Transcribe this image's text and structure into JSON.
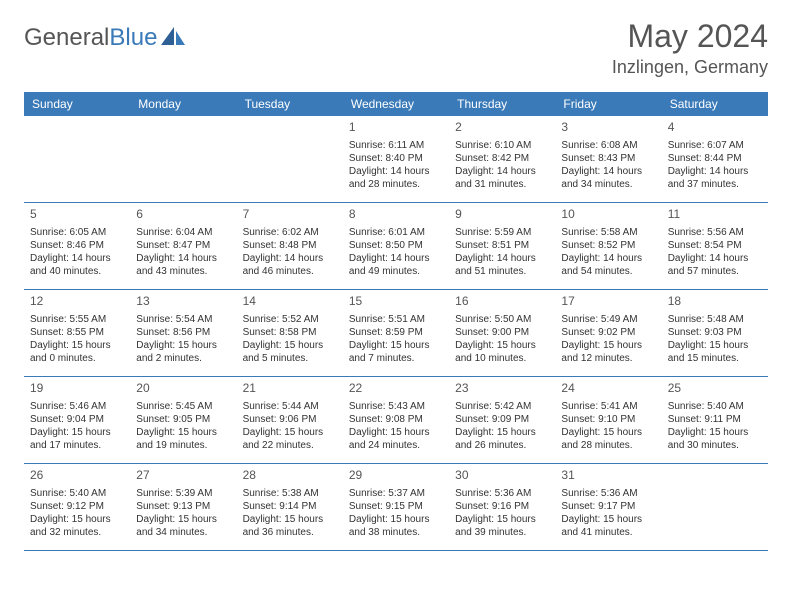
{
  "logo": {
    "text1": "General",
    "text2": "Blue"
  },
  "title": "May 2024",
  "location": "Inzlingen, Germany",
  "accent_color": "#3a7ab8",
  "background_color": "#ffffff",
  "text_color": "#333333",
  "dayheaders": [
    "Sunday",
    "Monday",
    "Tuesday",
    "Wednesday",
    "Thursday",
    "Friday",
    "Saturday"
  ],
  "weeks": [
    [
      null,
      null,
      null,
      {
        "n": "1",
        "sr": "Sunrise: 6:11 AM",
        "ss": "Sunset: 8:40 PM",
        "d1": "Daylight: 14 hours",
        "d2": "and 28 minutes."
      },
      {
        "n": "2",
        "sr": "Sunrise: 6:10 AM",
        "ss": "Sunset: 8:42 PM",
        "d1": "Daylight: 14 hours",
        "d2": "and 31 minutes."
      },
      {
        "n": "3",
        "sr": "Sunrise: 6:08 AM",
        "ss": "Sunset: 8:43 PM",
        "d1": "Daylight: 14 hours",
        "d2": "and 34 minutes."
      },
      {
        "n": "4",
        "sr": "Sunrise: 6:07 AM",
        "ss": "Sunset: 8:44 PM",
        "d1": "Daylight: 14 hours",
        "d2": "and 37 minutes."
      }
    ],
    [
      {
        "n": "5",
        "sr": "Sunrise: 6:05 AM",
        "ss": "Sunset: 8:46 PM",
        "d1": "Daylight: 14 hours",
        "d2": "and 40 minutes."
      },
      {
        "n": "6",
        "sr": "Sunrise: 6:04 AM",
        "ss": "Sunset: 8:47 PM",
        "d1": "Daylight: 14 hours",
        "d2": "and 43 minutes."
      },
      {
        "n": "7",
        "sr": "Sunrise: 6:02 AM",
        "ss": "Sunset: 8:48 PM",
        "d1": "Daylight: 14 hours",
        "d2": "and 46 minutes."
      },
      {
        "n": "8",
        "sr": "Sunrise: 6:01 AM",
        "ss": "Sunset: 8:50 PM",
        "d1": "Daylight: 14 hours",
        "d2": "and 49 minutes."
      },
      {
        "n": "9",
        "sr": "Sunrise: 5:59 AM",
        "ss": "Sunset: 8:51 PM",
        "d1": "Daylight: 14 hours",
        "d2": "and 51 minutes."
      },
      {
        "n": "10",
        "sr": "Sunrise: 5:58 AM",
        "ss": "Sunset: 8:52 PM",
        "d1": "Daylight: 14 hours",
        "d2": "and 54 minutes."
      },
      {
        "n": "11",
        "sr": "Sunrise: 5:56 AM",
        "ss": "Sunset: 8:54 PM",
        "d1": "Daylight: 14 hours",
        "d2": "and 57 minutes."
      }
    ],
    [
      {
        "n": "12",
        "sr": "Sunrise: 5:55 AM",
        "ss": "Sunset: 8:55 PM",
        "d1": "Daylight: 15 hours",
        "d2": "and 0 minutes."
      },
      {
        "n": "13",
        "sr": "Sunrise: 5:54 AM",
        "ss": "Sunset: 8:56 PM",
        "d1": "Daylight: 15 hours",
        "d2": "and 2 minutes."
      },
      {
        "n": "14",
        "sr": "Sunrise: 5:52 AM",
        "ss": "Sunset: 8:58 PM",
        "d1": "Daylight: 15 hours",
        "d2": "and 5 minutes."
      },
      {
        "n": "15",
        "sr": "Sunrise: 5:51 AM",
        "ss": "Sunset: 8:59 PM",
        "d1": "Daylight: 15 hours",
        "d2": "and 7 minutes."
      },
      {
        "n": "16",
        "sr": "Sunrise: 5:50 AM",
        "ss": "Sunset: 9:00 PM",
        "d1": "Daylight: 15 hours",
        "d2": "and 10 minutes."
      },
      {
        "n": "17",
        "sr": "Sunrise: 5:49 AM",
        "ss": "Sunset: 9:02 PM",
        "d1": "Daylight: 15 hours",
        "d2": "and 12 minutes."
      },
      {
        "n": "18",
        "sr": "Sunrise: 5:48 AM",
        "ss": "Sunset: 9:03 PM",
        "d1": "Daylight: 15 hours",
        "d2": "and 15 minutes."
      }
    ],
    [
      {
        "n": "19",
        "sr": "Sunrise: 5:46 AM",
        "ss": "Sunset: 9:04 PM",
        "d1": "Daylight: 15 hours",
        "d2": "and 17 minutes."
      },
      {
        "n": "20",
        "sr": "Sunrise: 5:45 AM",
        "ss": "Sunset: 9:05 PM",
        "d1": "Daylight: 15 hours",
        "d2": "and 19 minutes."
      },
      {
        "n": "21",
        "sr": "Sunrise: 5:44 AM",
        "ss": "Sunset: 9:06 PM",
        "d1": "Daylight: 15 hours",
        "d2": "and 22 minutes."
      },
      {
        "n": "22",
        "sr": "Sunrise: 5:43 AM",
        "ss": "Sunset: 9:08 PM",
        "d1": "Daylight: 15 hours",
        "d2": "and 24 minutes."
      },
      {
        "n": "23",
        "sr": "Sunrise: 5:42 AM",
        "ss": "Sunset: 9:09 PM",
        "d1": "Daylight: 15 hours",
        "d2": "and 26 minutes."
      },
      {
        "n": "24",
        "sr": "Sunrise: 5:41 AM",
        "ss": "Sunset: 9:10 PM",
        "d1": "Daylight: 15 hours",
        "d2": "and 28 minutes."
      },
      {
        "n": "25",
        "sr": "Sunrise: 5:40 AM",
        "ss": "Sunset: 9:11 PM",
        "d1": "Daylight: 15 hours",
        "d2": "and 30 minutes."
      }
    ],
    [
      {
        "n": "26",
        "sr": "Sunrise: 5:40 AM",
        "ss": "Sunset: 9:12 PM",
        "d1": "Daylight: 15 hours",
        "d2": "and 32 minutes."
      },
      {
        "n": "27",
        "sr": "Sunrise: 5:39 AM",
        "ss": "Sunset: 9:13 PM",
        "d1": "Daylight: 15 hours",
        "d2": "and 34 minutes."
      },
      {
        "n": "28",
        "sr": "Sunrise: 5:38 AM",
        "ss": "Sunset: 9:14 PM",
        "d1": "Daylight: 15 hours",
        "d2": "and 36 minutes."
      },
      {
        "n": "29",
        "sr": "Sunrise: 5:37 AM",
        "ss": "Sunset: 9:15 PM",
        "d1": "Daylight: 15 hours",
        "d2": "and 38 minutes."
      },
      {
        "n": "30",
        "sr": "Sunrise: 5:36 AM",
        "ss": "Sunset: 9:16 PM",
        "d1": "Daylight: 15 hours",
        "d2": "and 39 minutes."
      },
      {
        "n": "31",
        "sr": "Sunrise: 5:36 AM",
        "ss": "Sunset: 9:17 PM",
        "d1": "Daylight: 15 hours",
        "d2": "and 41 minutes."
      },
      null
    ]
  ]
}
